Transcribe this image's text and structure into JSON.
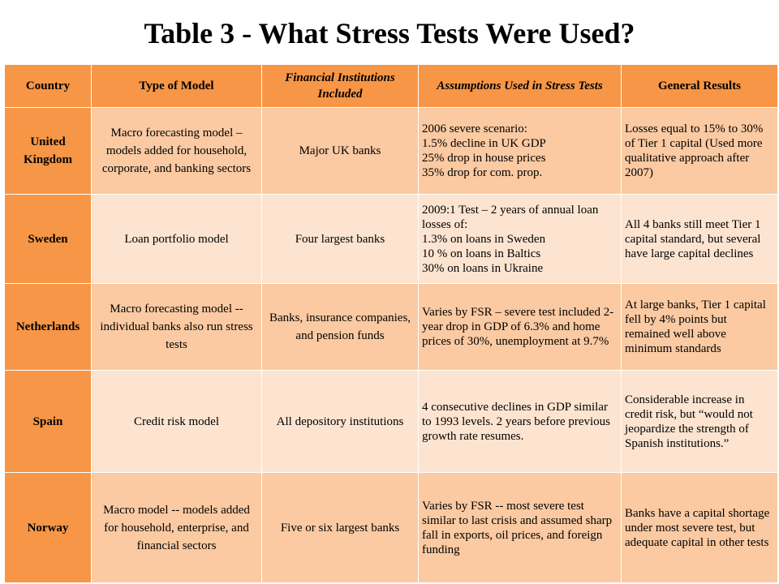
{
  "title": "Table 3 - What Stress Tests Were Used?",
  "headers": {
    "country": "Country",
    "model": "Type of Model",
    "institutions": "Financial Institutions Included",
    "assumptions": "Assumptions Used in Stress Tests",
    "results": "General Results"
  },
  "rows": [
    {
      "country": "United Kingdom",
      "model": "Macro forecasting model – models added for household, corporate, and banking sectors",
      "institutions": "Major UK banks",
      "assumptions": "2006 severe  scenario:\n1.5% decline in UK GDP\n25% drop in house prices\n35% drop for com. prop.",
      "results": "Losses equal to 15% to 30% of Tier 1 capital (Used more qualitative approach after 2007)"
    },
    {
      "country": "Sweden",
      "model": "Loan portfolio model",
      "institutions": "Four largest banks",
      "assumptions": "2009:1 Test – 2 years of annual loan losses of:\n1.3% on loans in Sweden\n10 % on loans in Baltics\n30% on loans in Ukraine",
      "results": "All 4 banks still meet Tier 1 capital standard, but several have large capital declines"
    },
    {
      "country": "Netherlands",
      "model": "Macro forecasting model -- individual banks also run stress tests",
      "institutions": "Banks, insurance companies, and pension funds",
      "assumptions": "Varies by FSR – severe test included 2-year drop in GDP of  6.3% and home prices of 30%, unemployment at 9.7%",
      "results": "At large banks, Tier 1 capital fell by 4% points but remained well above minimum standards"
    },
    {
      "country": "Spain",
      "model": "Credit risk model",
      "institutions": "All depository institutions",
      "assumptions": "4 consecutive declines in GDP similar to 1993 levels. 2 years before previous growth rate resumes.",
      "results": "Considerable increase in credit risk, but “would not jeopardize the strength of Spanish institutions.”"
    },
    {
      "country": "Norway",
      "model": "Macro model  --  models added for  household, enterprise, and financial sectors",
      "institutions": "Five or six largest banks",
      "assumptions": "Varies by FSR -- most severe test  similar to last crisis and assumed sharp fall in exports, oil prices, and foreign funding",
      "results": "Banks have a capital shortage under  most severe test, but  adequate capital in other tests"
    }
  ]
}
